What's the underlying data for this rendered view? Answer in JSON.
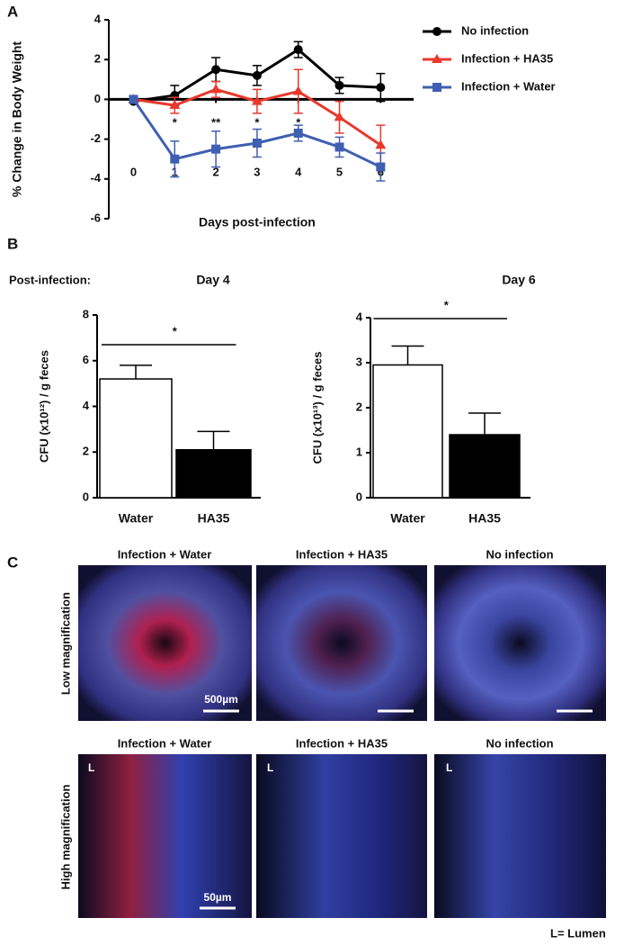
{
  "panel_labels": [
    "A",
    "B",
    "C"
  ],
  "post_infection_label": "Post-infection:",
  "chart_data": [
    {
      "type": "line",
      "ylabel": "% Change in Body Weight",
      "xlabel": "Days post-infection",
      "x": [
        0,
        1,
        2,
        3,
        4,
        5,
        6
      ],
      "xlim": [
        -0.6,
        6.8
      ],
      "xticks": [
        0,
        1,
        2,
        3,
        4,
        5,
        6
      ],
      "ylim": [
        -6,
        4
      ],
      "yticks": [
        -6,
        -4,
        -2,
        0,
        2,
        4
      ],
      "legend": "right",
      "series": [
        {
          "name": "No infection",
          "color": "#000000",
          "marker": "circle",
          "values": [
            -0.1,
            0.2,
            1.5,
            1.2,
            2.5,
            0.7,
            0.6
          ],
          "errors": [
            0,
            0.5,
            0.6,
            0.5,
            0.4,
            0.4,
            0.7
          ]
        },
        {
          "name": "Infection + HA35",
          "color": "#e8392c",
          "marker": "triangle",
          "values": [
            0,
            -0.3,
            0.5,
            -0.1,
            0.4,
            -0.9,
            -2.3
          ],
          "errors": [
            0,
            0.4,
            0.4,
            0.6,
            1.1,
            0.8,
            1.0
          ]
        },
        {
          "name": "Infection + Water",
          "color": "#3f5fb0",
          "marker": "square",
          "values": [
            0,
            -3.0,
            -2.5,
            -2.2,
            -1.7,
            -2.4,
            -3.4
          ],
          "errors": [
            0,
            0.9,
            0.9,
            0.7,
            0.4,
            0.5,
            0.7
          ]
        }
      ],
      "annotations": [
        {
          "x": 1,
          "label": "*"
        },
        {
          "x": 2,
          "label": "**"
        },
        {
          "x": 3,
          "label": "*"
        },
        {
          "x": 4,
          "label": "*"
        }
      ]
    },
    {
      "type": "bar",
      "title": "Day 4",
      "ylabel": "CFU (x10¹²) / g feces",
      "categories": [
        "Water",
        "HA35"
      ],
      "values": [
        5.2,
        2.1
      ],
      "errors": [
        0.6,
        0.8
      ],
      "colors": [
        "#ffffff",
        "#000000"
      ],
      "ylim": [
        0,
        8
      ],
      "yticks": [
        0,
        2,
        4,
        6,
        8
      ],
      "annotations": [
        {
          "label": "*"
        }
      ]
    },
    {
      "type": "bar",
      "title": "Day 6",
      "ylabel": "CFU (x10¹³) / g feces",
      "categories": [
        "Water",
        "HA35"
      ],
      "values": [
        2.95,
        1.4
      ],
      "errors": [
        0.42,
        0.48
      ],
      "colors": [
        "#ffffff",
        "#000000"
      ],
      "ylim": [
        0,
        4
      ],
      "yticks": [
        0,
        1,
        2,
        3,
        4
      ],
      "annotations": [
        {
          "label": "*"
        }
      ]
    }
  ],
  "panel_c": {
    "rows": [
      "Low magnification",
      "High magnification"
    ],
    "columns": [
      "Infection + Water",
      "Infection + HA35",
      "No infection"
    ],
    "scale_bars": [
      "500µm",
      "50µm"
    ],
    "lumen_marker": "L",
    "lumen_note": "L= Lumen"
  }
}
